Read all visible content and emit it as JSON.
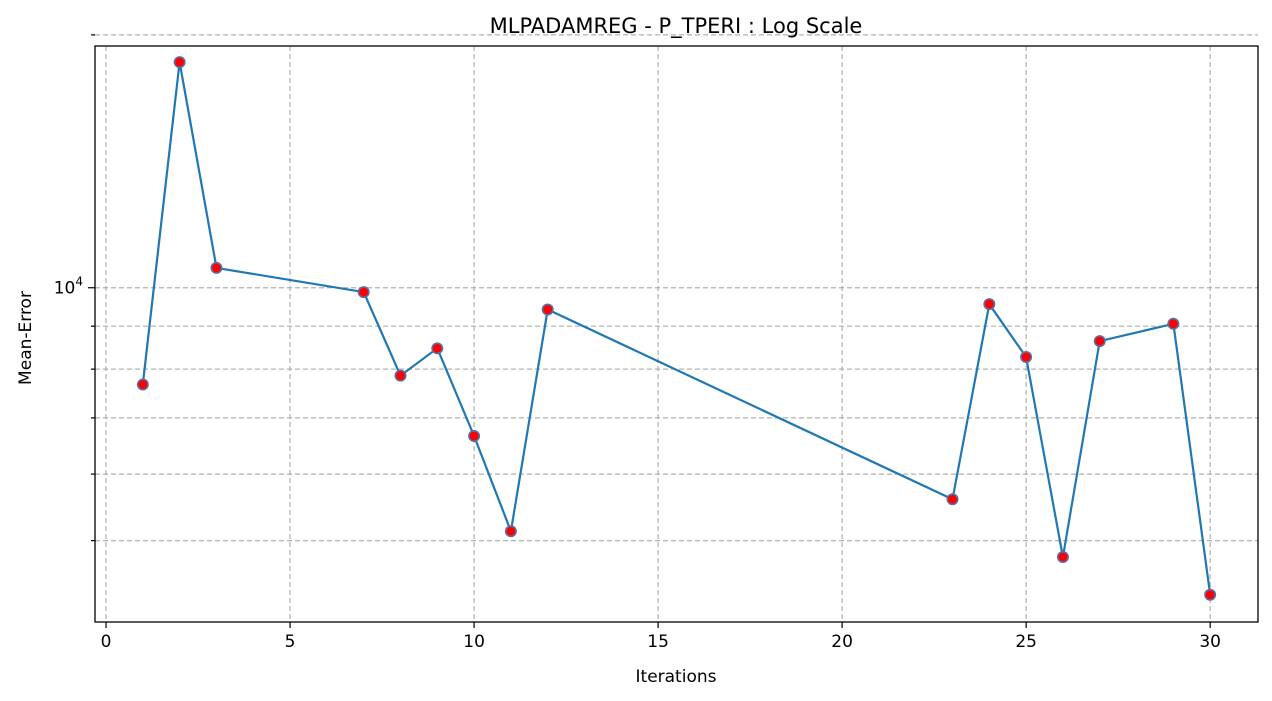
{
  "chart_data": {
    "type": "line",
    "title": "MLPADAMREG - P_TPERI : Log Scale",
    "xlabel": "Iterations",
    "ylabel": "Mean-Error",
    "yscale": "log",
    "grid": true,
    "xlim": [
      -0.3,
      31.3
    ],
    "ylim": [
      4000,
      19400
    ],
    "xticks": [
      0,
      5,
      10,
      15,
      20,
      25,
      30
    ],
    "yticks_major": [
      10000
    ],
    "ytick_major_labels": [
      "10^4"
    ],
    "yticks_minor": [
      5000,
      6000,
      7000,
      8000,
      9000,
      20000
    ],
    "series": [
      {
        "line_color": "#1f77b4",
        "marker_fill": "#ff0000",
        "marker_edge": "#5a6fa8",
        "points": [
          {
            "x": 1,
            "y": 7670
          },
          {
            "x": 2,
            "y": 18560
          },
          {
            "x": 3,
            "y": 10560
          },
          {
            "x": 7,
            "y": 9880
          },
          {
            "x": 8,
            "y": 7860
          },
          {
            "x": 9,
            "y": 8470
          },
          {
            "x": 10,
            "y": 6660
          },
          {
            "x": 11,
            "y": 5130
          },
          {
            "x": 12,
            "y": 9420
          },
          {
            "x": 23,
            "y": 5600
          },
          {
            "x": 24,
            "y": 9560
          },
          {
            "x": 25,
            "y": 8270
          },
          {
            "x": 26,
            "y": 4780
          },
          {
            "x": 27,
            "y": 8640
          },
          {
            "x": 29,
            "y": 9060
          },
          {
            "x": 30,
            "y": 4310
          }
        ]
      }
    ]
  }
}
